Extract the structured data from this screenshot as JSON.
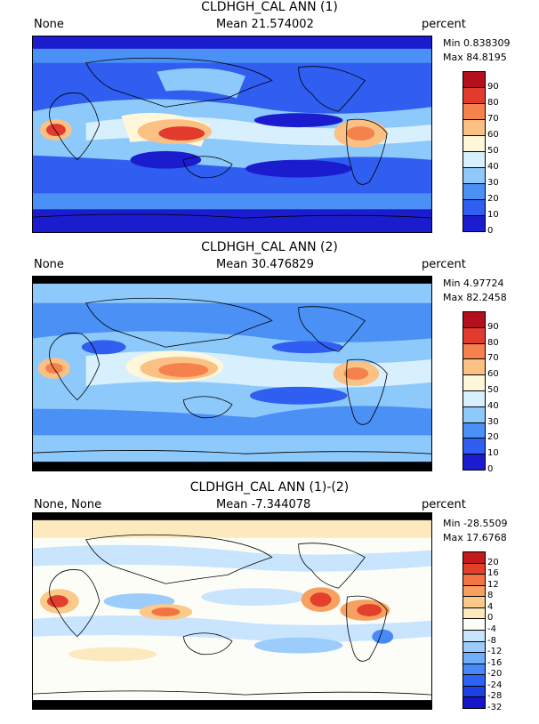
{
  "panels": [
    {
      "title": "CLDHGH_CAL ANN (1)",
      "left_label": "None",
      "mean_label": "Mean 21.574002",
      "units": "percent",
      "min_label": "Min 0.838309",
      "max_label": "Max 84.8195",
      "colorbar": {
        "levels": [
          "0",
          "10",
          "20",
          "30",
          "40",
          "50",
          "60",
          "70",
          "80",
          "90"
        ],
        "colors": [
          "#1c1ccf",
          "#2f5ef0",
          "#4a90f5",
          "#8dc9fb",
          "#d8f0fd",
          "#fff7d9",
          "#fbc083",
          "#f5824c",
          "#e23a2d",
          "#b40f1c"
        ]
      }
    },
    {
      "title": "CLDHGH_CAL ANN (2)",
      "left_label": "None",
      "mean_label": "Mean 30.476829",
      "units": "percent",
      "min_label": "Min 4.97724",
      "max_label": "Max 82.2458",
      "colorbar": {
        "levels": [
          "0",
          "10",
          "20",
          "30",
          "40",
          "50",
          "60",
          "70",
          "80",
          "90"
        ],
        "colors": [
          "#1c1ccf",
          "#2f5ef0",
          "#4a90f5",
          "#8dc9fb",
          "#d8f0fd",
          "#fff7d9",
          "#fbc083",
          "#f5824c",
          "#e23a2d",
          "#b40f1c"
        ]
      }
    },
    {
      "title": "CLDHGH_CAL ANN (1)-(2)",
      "left_label": "None, None",
      "mean_label": "Mean -7.344078",
      "units": "percent",
      "min_label": "Min -28.5509",
      "max_label": "Max 17.6768",
      "colorbar": {
        "levels": [
          "-32",
          "-28",
          "-24",
          "-20",
          "-16",
          "-12",
          "-8",
          "-4",
          "0",
          "4",
          "8",
          "12",
          "16",
          "20"
        ],
        "colors": [
          "#1414c8",
          "#1e3ee6",
          "#2b63f2",
          "#4689f7",
          "#6eaefa",
          "#9cccfc",
          "#c9e5fd",
          "#fdfdf8",
          "#fde9be",
          "#fbc98a",
          "#f7a060",
          "#f27444",
          "#e23f2c",
          "#c31a1c"
        ]
      }
    }
  ],
  "chart_data": [
    {
      "type": "heatmap",
      "title": "CLDHGH_CAL ANN (1)",
      "subtitle": "None",
      "mean": 21.574002,
      "min": 0.838309,
      "max": 84.8195,
      "units": "percent",
      "levels": [
        0,
        10,
        20,
        30,
        40,
        50,
        60,
        70,
        80,
        90
      ]
    },
    {
      "type": "heatmap",
      "title": "CLDHGH_CAL ANN (2)",
      "subtitle": "None",
      "mean": 30.476829,
      "min": 4.97724,
      "max": 82.2458,
      "units": "percent",
      "levels": [
        0,
        10,
        20,
        30,
        40,
        50,
        60,
        70,
        80,
        90
      ]
    },
    {
      "type": "heatmap",
      "title": "CLDHGH_CAL ANN (1)-(2)",
      "subtitle": "None, None",
      "mean": -7.344078,
      "min": -28.5509,
      "max": 17.6768,
      "units": "percent",
      "levels": [
        -32,
        -28,
        -24,
        -20,
        -16,
        -12,
        -8,
        -4,
        0,
        4,
        8,
        12,
        16,
        20
      ]
    }
  ]
}
